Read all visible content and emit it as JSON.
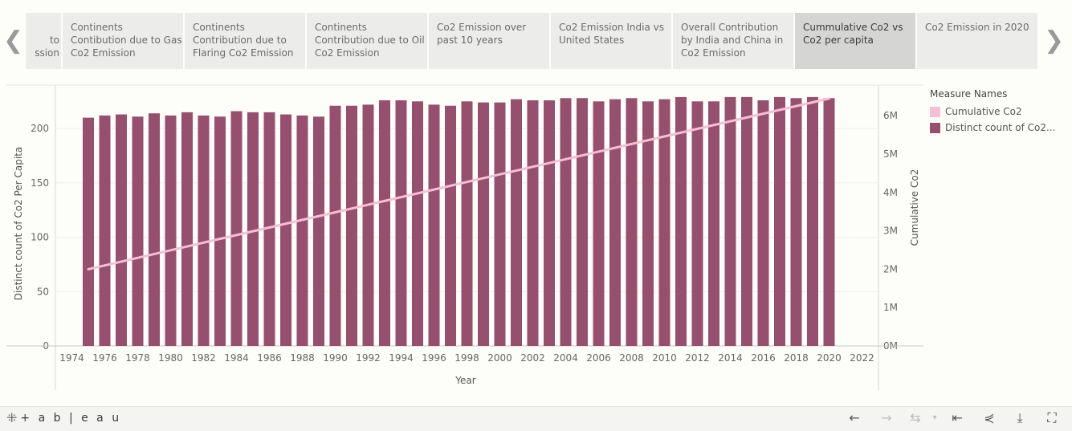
{
  "tabs": [
    {
      "label": "to\nssion"
    },
    {
      "label": "Continents\nContibution due to Gas\nCo2 Emission"
    },
    {
      "label": "Continents\nContribution due to\nFlaring Co2 Emission"
    },
    {
      "label": "Continents\nContribution due to Oil\nCo2 Emission"
    },
    {
      "label": "Co2 Emission over\npast 10 years"
    },
    {
      "label": "Co2 Emission India vs\nUnited States"
    },
    {
      "label": "Overall Contribution\nby India and China in\nCo2 Emission"
    },
    {
      "label": "Cummulative Co2 vs\nCo2 per capita",
      "active": true
    },
    {
      "label": "Co2 Emission in 2020"
    }
  ],
  "nav": {
    "prev": "❮",
    "next": "❯"
  },
  "legend": {
    "title": "Measure Names",
    "items": [
      {
        "label": "Cumulative Co2",
        "color": "#f6bfd6"
      },
      {
        "label": "Distinct count of Co2...",
        "color": "#96506e"
      }
    ]
  },
  "chart_data": {
    "type": "bar",
    "xlabel": "Year",
    "ylabel": "Distinct count of Co2 Per Capita",
    "y2label": "Cumulative Co2",
    "x_ticks": [
      1974,
      1976,
      1978,
      1980,
      1982,
      1984,
      1986,
      1988,
      1990,
      1992,
      1994,
      1996,
      1998,
      2000,
      2002,
      2004,
      2006,
      2008,
      2010,
      2012,
      2014,
      2016,
      2018,
      2020,
      2022
    ],
    "y_ticks": [
      0,
      50,
      100,
      150,
      200
    ],
    "y2_ticks": [
      "0M",
      "1M",
      "2M",
      "3M",
      "4M",
      "5M",
      "6M"
    ],
    "ylim": [
      0,
      240
    ],
    "y2lim": [
      0,
      6800000
    ],
    "bar_color": "#96506e",
    "line_color": "#f6bfd6",
    "series": [
      {
        "name": "Distinct count of Co2...",
        "x": [
          1975,
          1976,
          1977,
          1978,
          1979,
          1980,
          1981,
          1982,
          1983,
          1984,
          1985,
          1986,
          1987,
          1988,
          1989,
          1990,
          1991,
          1992,
          1993,
          1994,
          1995,
          1996,
          1997,
          1998,
          1999,
          2000,
          2001,
          2002,
          2003,
          2004,
          2005,
          2006,
          2007,
          2008,
          2009,
          2010,
          2011,
          2012,
          2013,
          2014,
          2015,
          2016,
          2017,
          2018,
          2019,
          2020
        ],
        "values": [
          210,
          212,
          213,
          211,
          214,
          212,
          215,
          212,
          211,
          216,
          215,
          215,
          213,
          212,
          211,
          221,
          221,
          222,
          226,
          226,
          225,
          222,
          221,
          225,
          224,
          224,
          227,
          226,
          226,
          228,
          228,
          225,
          227,
          228,
          225,
          227,
          229,
          225,
          225,
          229,
          229,
          226,
          229,
          228,
          229,
          228
        ]
      },
      {
        "name": "Cumulative Co2",
        "x": [
          1975,
          2020
        ],
        "values": [
          2000000,
          6450000
        ]
      }
    ]
  },
  "footer": {
    "logo_text": "+ a b | e a u",
    "tools": [
      "undo-icon",
      "redo-icon",
      "revert-icon",
      "reset-icon",
      "share-icon",
      "download-icon",
      "fullscreen-icon"
    ]
  }
}
